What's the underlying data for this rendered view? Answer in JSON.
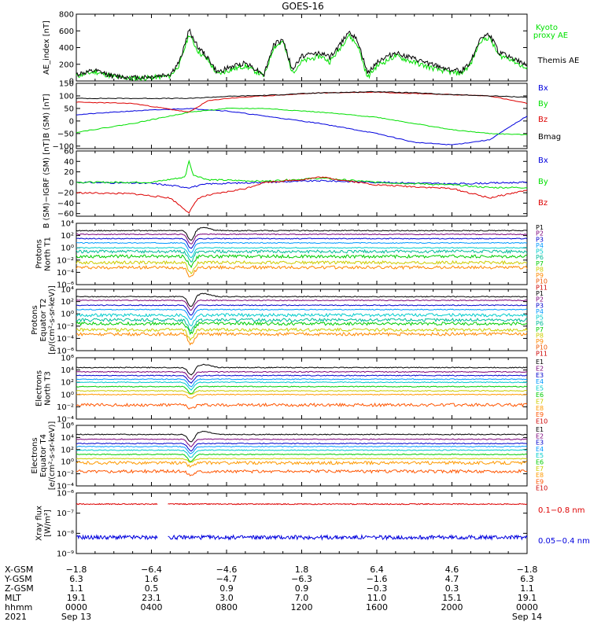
{
  "title": "GOES-16",
  "footer": {
    "rows": [
      {
        "label": "X-GSM",
        "values": [
          "−1.8",
          "−6.4",
          "−4.6",
          "1.8",
          "6.4",
          "4.6",
          "−1.8"
        ]
      },
      {
        "label": "Y-GSM",
        "values": [
          "6.3",
          "1.6",
          "−4.7",
          "−6.3",
          "−1.6",
          "4.7",
          "6.3"
        ]
      },
      {
        "label": "Z-GSM",
        "values": [
          "1.1",
          "0.5",
          "0.9",
          "0.9",
          "−0.3",
          "0.3",
          "1.1"
        ]
      },
      {
        "label": "MLT",
        "values": [
          "19.1",
          "23.1",
          "3.0",
          "7.0",
          "11.0",
          "15.1",
          "19.1"
        ]
      },
      {
        "label": "hhmm",
        "values": [
          "0000",
          "0400",
          "0800",
          "1200",
          "1600",
          "2000",
          "0000"
        ]
      }
    ],
    "year": "2021",
    "start_date": "Sep 13",
    "end_date": "Sep 14"
  },
  "colors": {
    "black": "#000000",
    "green": "#00e000",
    "blue": "#0000dd",
    "red": "#dd0000",
    "p_channels": [
      "#000000",
      "#7a007a",
      "#0000cc",
      "#0099ff",
      "#00cccc",
      "#00bb99",
      "#00cc00",
      "#cccc00",
      "#ff8800",
      "#ee5500",
      "#cc0000"
    ],
    "e_channels": [
      "#000000",
      "#7a007a",
      "#0000cc",
      "#0099ff",
      "#00cccc",
      "#00cc00",
      "#cccc00",
      "#ff9900",
      "#ff5500",
      "#cc0000"
    ]
  },
  "chart_data": [
    {
      "type": "line",
      "panel": "ae-index",
      "ylabel": "AE_index [nT]",
      "ylim": [
        0,
        800
      ],
      "yticks": [
        "0",
        "200",
        "400",
        "600",
        "800"
      ],
      "xlim_hours": [
        0,
        24
      ],
      "series": [
        {
          "name": "Kyoto proxy AE",
          "color": "#00e000",
          "legend": [
            "Kyoto",
            "proxy AE"
          ],
          "x": [
            0,
            1,
            2,
            3,
            4,
            5,
            5.5,
            6,
            6.5,
            7,
            7.5,
            8,
            9,
            10,
            10.5,
            11,
            11.5,
            12,
            13,
            13.5,
            14,
            14.5,
            15,
            15.5,
            16,
            17,
            18,
            19,
            20,
            20.5,
            21,
            21.5,
            22,
            22.5,
            23,
            24
          ],
          "y": [
            60,
            110,
            50,
            30,
            40,
            60,
            200,
            560,
            350,
            250,
            80,
            120,
            180,
            60,
            400,
            470,
            100,
            230,
            300,
            230,
            380,
            550,
            420,
            40,
            180,
            300,
            220,
            150,
            100,
            90,
            200,
            480,
            520,
            300,
            280,
            140
          ]
        },
        {
          "name": "Themis AE",
          "color": "#000000",
          "legend": [
            "Themis AE"
          ],
          "x": [
            0,
            1,
            2,
            3,
            4,
            5,
            5.5,
            6,
            6.5,
            7,
            7.5,
            8,
            9,
            10,
            10.5,
            11,
            11.5,
            12,
            13,
            13.5,
            14,
            14.5,
            15,
            15.5,
            16,
            17,
            18,
            19,
            20,
            20.5,
            21,
            21.5,
            22,
            22.5,
            23,
            24
          ],
          "y": [
            80,
            120,
            60,
            40,
            50,
            80,
            230,
            610,
            400,
            280,
            100,
            150,
            220,
            80,
            430,
            500,
            130,
            300,
            340,
            280,
            420,
            600,
            470,
            90,
            230,
            340,
            260,
            190,
            130,
            120,
            230,
            510,
            560,
            340,
            300,
            180
          ]
        }
      ]
    },
    {
      "type": "line",
      "panel": "b-sm",
      "ylabel": "B (SM) [nT]",
      "ylim": [
        -110,
        150
      ],
      "yticks": [
        "−100",
        "−50",
        "0",
        "50",
        "100",
        "150"
      ],
      "series": [
        {
          "name": "Bx",
          "color": "#0000dd",
          "x": [
            0,
            3,
            6,
            8,
            10,
            13,
            16,
            18,
            20,
            22,
            24
          ],
          "y": [
            25,
            40,
            50,
            40,
            20,
            -10,
            -50,
            -85,
            -95,
            -75,
            20
          ]
        },
        {
          "name": "By",
          "color": "#00e000",
          "x": [
            0,
            3,
            6,
            8,
            10,
            13,
            16,
            18,
            20,
            22,
            24
          ],
          "y": [
            -45,
            -10,
            35,
            50,
            50,
            35,
            15,
            -10,
            -35,
            -50,
            -55
          ]
        },
        {
          "name": "Bz",
          "color": "#dd0000",
          "x": [
            0,
            3,
            6,
            7,
            8,
            10,
            13,
            16,
            18,
            20,
            22,
            24
          ],
          "y": [
            75,
            70,
            35,
            80,
            90,
            100,
            112,
            115,
            110,
            105,
            100,
            70
          ]
        },
        {
          "name": "Bmag",
          "color": "#000000",
          "x": [
            0,
            3,
            6,
            8,
            10,
            13,
            16,
            18,
            20,
            22,
            24
          ],
          "y": [
            90,
            90,
            90,
            98,
            102,
            112,
            117,
            112,
            105,
            100,
            95
          ]
        }
      ]
    },
    {
      "type": "line",
      "panel": "b-minus-igrf",
      "ylabel": "B (SM)−IGRF (SM) [nT]",
      "ylim": [
        -65,
        60
      ],
      "yticks": [
        "−60",
        "−40",
        "−20",
        "0",
        "20",
        "40",
        "60"
      ],
      "series": [
        {
          "name": "Bx",
          "color": "#0000dd",
          "x": [
            0,
            4,
            6,
            7,
            10,
            13,
            16,
            20,
            24
          ],
          "y": [
            0,
            -2,
            -10,
            -3,
            0,
            3,
            0,
            -3,
            0
          ]
        },
        {
          "name": "By",
          "color": "#00e000",
          "x": [
            0,
            4,
            5.8,
            6,
            6.2,
            7,
            10,
            13,
            16,
            20,
            22,
            24
          ],
          "y": [
            0,
            0,
            10,
            42,
            15,
            5,
            2,
            8,
            0,
            -5,
            -10,
            -10
          ]
        },
        {
          "name": "Bz",
          "color": "#dd0000",
          "x": [
            0,
            3,
            5,
            6,
            6.5,
            7,
            9,
            10,
            12,
            13,
            16,
            20,
            22,
            24
          ],
          "y": [
            -20,
            -22,
            -30,
            -58,
            -30,
            -25,
            -12,
            0,
            5,
            10,
            -5,
            -12,
            -30,
            -15
          ]
        }
      ]
    },
    {
      "type": "line",
      "panel": "protons-north-t1",
      "ylabel": [
        "Protons",
        "North T1"
      ],
      "ylog": true,
      "ylim_exp": [
        -6,
        4
      ],
      "yticks": [
        "10⁴",
        "10²",
        "10⁰",
        "10⁻²",
        "10⁻⁴",
        "10⁻⁶"
      ],
      "series_labels": [
        "P1",
        "P2",
        "P3",
        "P4",
        "P5",
        "P6",
        "P7",
        "P8",
        "P9",
        "P10",
        "P11"
      ],
      "log10_levels": [
        2.8,
        2.2,
        1.5,
        0.8,
        0,
        -0.6,
        -1.4,
        -2.4,
        -3.2,
        -6,
        -6
      ]
    },
    {
      "type": "line",
      "panel": "protons-equator-t2",
      "ylabel": [
        "Protons",
        "Equator T2",
        "[p/(cm²-s-sr-keV)]"
      ],
      "ylog": true,
      "ylim_exp": [
        -6,
        4
      ],
      "yticks": [
        "10⁴",
        "10²",
        "10⁰",
        "10⁻²",
        "10⁻⁴",
        "10⁻⁶"
      ],
      "series_labels": [
        "P1",
        "P2",
        "P3",
        "P4",
        "P5",
        "P6",
        "P7",
        "P8",
        "P9",
        "P10",
        "P11"
      ],
      "log10_levels": [
        2.8,
        2.2,
        1.4,
        0.7,
        -0.2,
        -1.0,
        -1.6,
        -2.6,
        -3.3,
        -6,
        -6
      ]
    },
    {
      "type": "line",
      "panel": "electrons-north-t3",
      "ylabel": [
        "Electrons",
        "North T3"
      ],
      "ylog": true,
      "ylim_exp": [
        -4,
        6
      ],
      "yticks": [
        "10⁶",
        "10⁴",
        "10²",
        "10⁰",
        "10⁻²",
        "10⁻⁴"
      ],
      "series_labels": [
        "E1",
        "E2",
        "E3",
        "E4",
        "E5",
        "E6",
        "E7",
        "E8",
        "E9",
        "E10"
      ],
      "log10_levels": [
        4.4,
        3.7,
        3.1,
        2.5,
        2.0,
        1.3,
        0.6,
        0.0,
        -1.7,
        -4
      ]
    },
    {
      "type": "line",
      "panel": "electrons-equator-t4",
      "ylabel": [
        "Electrons",
        "Equator T4",
        "[e/(cm²-s-sr-keV)]"
      ],
      "ylog": true,
      "ylim_exp": [
        -4,
        6
      ],
      "yticks": [
        "10⁶",
        "10⁴",
        "10²",
        "10⁰",
        "10⁻²",
        "10⁻⁴"
      ],
      "series_labels": [
        "E1",
        "E2",
        "E3",
        "E4",
        "E5",
        "E6",
        "E7",
        "E8",
        "E9",
        "E10"
      ],
      "log10_levels": [
        4.5,
        3.7,
        3.0,
        2.5,
        1.9,
        1.2,
        0.5,
        -0.2,
        -1.6,
        -4
      ]
    },
    {
      "type": "line",
      "panel": "xray-flux",
      "ylabel": [
        "Xray flux",
        "[W/m²]"
      ],
      "ylog": true,
      "ylim_exp": [
        -9,
        -6
      ],
      "yticks": [
        "10⁻⁶",
        "10⁻⁷",
        "10⁻⁸",
        "10⁻⁹"
      ],
      "series": [
        {
          "name": "0.1−0.8 nm",
          "color": "#dd0000",
          "log10_level": -6.55
        },
        {
          "name": "0.05−0.4 nm",
          "color": "#0000dd",
          "log10_level": -8.2
        }
      ]
    }
  ]
}
